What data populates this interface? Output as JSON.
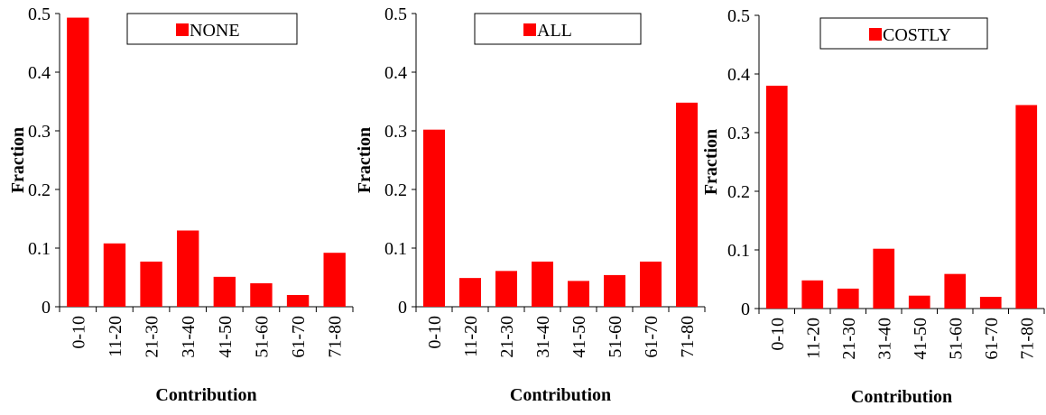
{
  "chart_data": [
    {
      "type": "bar",
      "legend": "NONE",
      "xlabel": "Contribution",
      "ylabel": "Fraction",
      "ylim": [
        0,
        0.5
      ],
      "yticks": [
        "0",
        "0.1",
        "0.2",
        "0.3",
        "0.4",
        "0.5"
      ],
      "categories": [
        "0-10",
        "11-20",
        "21-30",
        "31-40",
        "41-50",
        "51-60",
        "61-70",
        "71-80"
      ],
      "values": [
        0.493,
        0.108,
        0.077,
        0.13,
        0.051,
        0.04,
        0.02,
        0.092
      ],
      "bar_color": "#ff0000"
    },
    {
      "type": "bar",
      "legend": "ALL",
      "xlabel": "Contribution",
      "ylabel": "Fraction",
      "ylim": [
        0,
        0.5
      ],
      "yticks": [
        "0",
        "0.1",
        "0.2",
        "0.3",
        "0.4",
        "0.5"
      ],
      "categories": [
        "0-10",
        "11-20",
        "21-30",
        "31-40",
        "41-50",
        "51-60",
        "61-70",
        "71-80"
      ],
      "values": [
        0.302,
        0.049,
        0.061,
        0.077,
        0.044,
        0.054,
        0.077,
        0.348
      ],
      "bar_color": "#ff0000"
    },
    {
      "type": "bar",
      "legend": "COSTLY",
      "xlabel": "Contribution",
      "ylabel": "Fraction",
      "ylim": [
        0,
        0.5
      ],
      "yticks": [
        "0",
        "0.1",
        "0.2",
        "0.3",
        "0.4",
        "0.5"
      ],
      "categories": [
        "0-10",
        "11-20",
        "21-30",
        "31-40",
        "41-50",
        "51-60",
        "61-70",
        "71-80"
      ],
      "values": [
        0.38,
        0.048,
        0.034,
        0.102,
        0.022,
        0.059,
        0.02,
        0.347
      ],
      "bar_color": "#ff0000"
    }
  ]
}
